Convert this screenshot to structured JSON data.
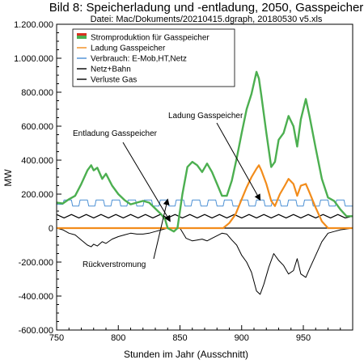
{
  "chart_data": {
    "type": "line",
    "title": "Bild 8: Speicherladung und -entladung, 2050, Gasspeicher",
    "subtitle": "Datei: Mac/Dokuments/20210415.dgraph, 20180530 v5.xls",
    "xlabel": "Stunden im Jahr (Ausschnitt)",
    "ylabel": "MW",
    "xlim": [
      750,
      990
    ],
    "ylim": [
      -600000,
      1200000
    ],
    "x_ticks": [
      750,
      800,
      850,
      900,
      950
    ],
    "x_tick_labels": [
      "750",
      "800",
      "850",
      "900",
      "950"
    ],
    "y_ticks": [
      -600000,
      -400000,
      -200000,
      0,
      200000,
      400000,
      600000,
      800000,
      1000000,
      1200000
    ],
    "y_tick_labels": [
      "-600.000",
      "-400.000",
      "-200.000",
      "0",
      "200.000",
      "400.000",
      "600.000",
      "800.000",
      "1.000.000",
      "1.200.000"
    ],
    "legend_position": "top-left",
    "series": [
      {
        "name": "Stromproduktion für Gasspeicher",
        "color": "#4caf50",
        "legend_style": "filled-box",
        "points": [
          [
            750,
            150000
          ],
          [
            755,
            145000
          ],
          [
            760,
            170000
          ],
          [
            765,
            190000
          ],
          [
            770,
            260000
          ],
          [
            775,
            340000
          ],
          [
            778,
            370000
          ],
          [
            780,
            340000
          ],
          [
            783,
            355000
          ],
          [
            787,
            290000
          ],
          [
            790,
            320000
          ],
          [
            795,
            250000
          ],
          [
            800,
            200000
          ],
          [
            805,
            165000
          ],
          [
            810,
            140000
          ],
          [
            815,
            150000
          ],
          [
            820,
            160000
          ],
          [
            825,
            150000
          ],
          [
            830,
            115000
          ],
          [
            835,
            80000
          ],
          [
            838,
            50000
          ],
          [
            840,
            0
          ],
          [
            845,
            -20000
          ],
          [
            848,
            0
          ],
          [
            852,
            200000
          ],
          [
            856,
            360000
          ],
          [
            860,
            390000
          ],
          [
            864,
            370000
          ],
          [
            868,
            330000
          ],
          [
            872,
            380000
          ],
          [
            876,
            330000
          ],
          [
            880,
            260000
          ],
          [
            884,
            190000
          ],
          [
            888,
            190000
          ],
          [
            892,
            280000
          ],
          [
            896,
            410000
          ],
          [
            900,
            560000
          ],
          [
            904,
            700000
          ],
          [
            908,
            790000
          ],
          [
            912,
            920000
          ],
          [
            914,
            880000
          ],
          [
            916,
            780000
          ],
          [
            920,
            560000
          ],
          [
            924,
            360000
          ],
          [
            927,
            390000
          ],
          [
            930,
            520000
          ],
          [
            934,
            560000
          ],
          [
            938,
            660000
          ],
          [
            942,
            600000
          ],
          [
            945,
            480000
          ],
          [
            948,
            640000
          ],
          [
            952,
            760000
          ],
          [
            955,
            660000
          ],
          [
            960,
            470000
          ],
          [
            965,
            290000
          ],
          [
            970,
            180000
          ],
          [
            975,
            160000
          ],
          [
            980,
            110000
          ],
          [
            985,
            70000
          ],
          [
            990,
            70000
          ]
        ]
      },
      {
        "name": "Ladung Gasspeicher",
        "color": "#f28c1b",
        "legend_style": "line",
        "points": [
          [
            750,
            0
          ],
          [
            800,
            0
          ],
          [
            838,
            0
          ],
          [
            843,
            0
          ],
          [
            848,
            0
          ],
          [
            855,
            0
          ],
          [
            862,
            0
          ],
          [
            870,
            0
          ],
          [
            880,
            0
          ],
          [
            885,
            0
          ],
          [
            890,
            30000
          ],
          [
            895,
            80000
          ],
          [
            900,
            170000
          ],
          [
            904,
            240000
          ],
          [
            908,
            300000
          ],
          [
            912,
            350000
          ],
          [
            914,
            370000
          ],
          [
            916,
            340000
          ],
          [
            920,
            260000
          ],
          [
            924,
            160000
          ],
          [
            927,
            130000
          ],
          [
            931,
            200000
          ],
          [
            935,
            250000
          ],
          [
            938,
            290000
          ],
          [
            942,
            260000
          ],
          [
            945,
            190000
          ],
          [
            948,
            250000
          ],
          [
            952,
            260000
          ],
          [
            955,
            210000
          ],
          [
            960,
            120000
          ],
          [
            965,
            40000
          ],
          [
            970,
            0
          ],
          [
            990,
            0
          ]
        ]
      },
      {
        "name": "Verbrauch: E-Mob,HT,Netz",
        "color": "#4a8fd4",
        "legend_style": "line",
        "points": [
          [
            750,
            140000
          ],
          [
            755,
            140000
          ],
          [
            756,
            165000
          ],
          [
            762,
            165000
          ],
          [
            763,
            130000
          ],
          [
            768,
            130000
          ],
          [
            769,
            165000
          ],
          [
            775,
            165000
          ],
          [
            776,
            130000
          ],
          [
            781,
            130000
          ],
          [
            782,
            165000
          ],
          [
            788,
            165000
          ],
          [
            789,
            130000
          ],
          [
            794,
            130000
          ],
          [
            795,
            165000
          ],
          [
            801,
            165000
          ],
          [
            802,
            130000
          ],
          [
            807,
            130000
          ],
          [
            808,
            165000
          ],
          [
            814,
            165000
          ],
          [
            815,
            130000
          ],
          [
            820,
            130000
          ],
          [
            821,
            165000
          ],
          [
            827,
            165000
          ],
          [
            828,
            130000
          ],
          [
            833,
            130000
          ],
          [
            834,
            165000
          ],
          [
            840,
            165000
          ],
          [
            841,
            130000
          ],
          [
            846,
            130000
          ],
          [
            847,
            165000
          ],
          [
            853,
            165000
          ],
          [
            854,
            130000
          ],
          [
            859,
            130000
          ],
          [
            860,
            165000
          ],
          [
            866,
            165000
          ],
          [
            867,
            130000
          ],
          [
            872,
            130000
          ],
          [
            873,
            165000
          ],
          [
            879,
            165000
          ],
          [
            880,
            130000
          ],
          [
            885,
            130000
          ],
          [
            886,
            165000
          ],
          [
            892,
            165000
          ],
          [
            893,
            130000
          ],
          [
            898,
            130000
          ],
          [
            899,
            165000
          ],
          [
            905,
            165000
          ],
          [
            906,
            130000
          ],
          [
            911,
            130000
          ],
          [
            912,
            165000
          ],
          [
            918,
            165000
          ],
          [
            919,
            130000
          ],
          [
            924,
            130000
          ],
          [
            925,
            165000
          ],
          [
            931,
            165000
          ],
          [
            932,
            130000
          ],
          [
            937,
            130000
          ],
          [
            938,
            165000
          ],
          [
            944,
            165000
          ],
          [
            945,
            130000
          ],
          [
            950,
            130000
          ],
          [
            951,
            165000
          ],
          [
            957,
            165000
          ],
          [
            958,
            130000
          ],
          [
            963,
            130000
          ],
          [
            964,
            165000
          ],
          [
            970,
            165000
          ],
          [
            971,
            130000
          ],
          [
            976,
            130000
          ],
          [
            977,
            165000
          ],
          [
            983,
            165000
          ],
          [
            984,
            130000
          ],
          [
            990,
            130000
          ]
        ]
      },
      {
        "name": "Netz+Bahn",
        "color": "#000000",
        "legend_style": "line",
        "points": [
          [
            750,
            80000
          ],
          [
            756,
            60000
          ],
          [
            762,
            80000
          ],
          [
            768,
            60000
          ],
          [
            774,
            80000
          ],
          [
            780,
            60000
          ],
          [
            786,
            80000
          ],
          [
            792,
            60000
          ],
          [
            798,
            80000
          ],
          [
            804,
            60000
          ],
          [
            810,
            80000
          ],
          [
            816,
            60000
          ],
          [
            822,
            80000
          ],
          [
            828,
            60000
          ],
          [
            834,
            80000
          ],
          [
            840,
            60000
          ],
          [
            846,
            80000
          ],
          [
            852,
            60000
          ],
          [
            858,
            80000
          ],
          [
            864,
            60000
          ],
          [
            870,
            80000
          ],
          [
            876,
            60000
          ],
          [
            882,
            80000
          ],
          [
            888,
            60000
          ],
          [
            894,
            80000
          ],
          [
            900,
            60000
          ],
          [
            906,
            80000
          ],
          [
            912,
            60000
          ],
          [
            918,
            80000
          ],
          [
            924,
            60000
          ],
          [
            930,
            80000
          ],
          [
            936,
            60000
          ],
          [
            942,
            80000
          ],
          [
            948,
            60000
          ],
          [
            954,
            80000
          ],
          [
            960,
            60000
          ],
          [
            966,
            80000
          ],
          [
            972,
            60000
          ],
          [
            978,
            80000
          ],
          [
            984,
            60000
          ],
          [
            990,
            70000
          ]
        ]
      },
      {
        "name": "Verluste Gas",
        "color": "#000000",
        "legend_style": "line",
        "points": [
          [
            750,
            0
          ],
          [
            755,
            -10000
          ],
          [
            760,
            -30000
          ],
          [
            765,
            -40000
          ],
          [
            770,
            -70000
          ],
          [
            775,
            -100000
          ],
          [
            778,
            -110000
          ],
          [
            780,
            -95000
          ],
          [
            783,
            -105000
          ],
          [
            787,
            -80000
          ],
          [
            790,
            -90000
          ],
          [
            795,
            -65000
          ],
          [
            800,
            -50000
          ],
          [
            805,
            -40000
          ],
          [
            810,
            -30000
          ],
          [
            815,
            -35000
          ],
          [
            820,
            -35000
          ],
          [
            825,
            -30000
          ],
          [
            830,
            -20000
          ],
          [
            835,
            -10000
          ],
          [
            840,
            0
          ],
          [
            845,
            0
          ],
          [
            850,
            0
          ],
          [
            855,
            -60000
          ],
          [
            860,
            -75000
          ],
          [
            864,
            -70000
          ],
          [
            868,
            -65000
          ],
          [
            872,
            -75000
          ],
          [
            876,
            -60000
          ],
          [
            880,
            -45000
          ],
          [
            884,
            -30000
          ],
          [
            888,
            -35000
          ],
          [
            892,
            -70000
          ],
          [
            896,
            -100000
          ],
          [
            900,
            -160000
          ],
          [
            904,
            -200000
          ],
          [
            908,
            -260000
          ],
          [
            912,
            -370000
          ],
          [
            915,
            -390000
          ],
          [
            918,
            -330000
          ],
          [
            922,
            -230000
          ],
          [
            926,
            -150000
          ],
          [
            930,
            -190000
          ],
          [
            934,
            -220000
          ],
          [
            938,
            -270000
          ],
          [
            942,
            -250000
          ],
          [
            945,
            -180000
          ],
          [
            948,
            -270000
          ],
          [
            952,
            -290000
          ],
          [
            955,
            -240000
          ],
          [
            960,
            -160000
          ],
          [
            965,
            -80000
          ],
          [
            970,
            -30000
          ],
          [
            975,
            -20000
          ],
          [
            980,
            -10000
          ],
          [
            990,
            0
          ]
        ]
      }
    ],
    "annotations": [
      {
        "text": "Ladung Gasspeicher",
        "anchor": [
          920,
          560000
        ],
        "target": [
          915,
          165000
        ]
      },
      {
        "text": "Entladung Gasspeicher",
        "anchor": [
          815,
          550000
        ],
        "target": [
          842,
          40000
        ]
      },
      {
        "text": "Rückverstromung",
        "anchor": [
          838,
          0
        ],
        "target": [
          840,
          170000
        ]
      }
    ]
  }
}
